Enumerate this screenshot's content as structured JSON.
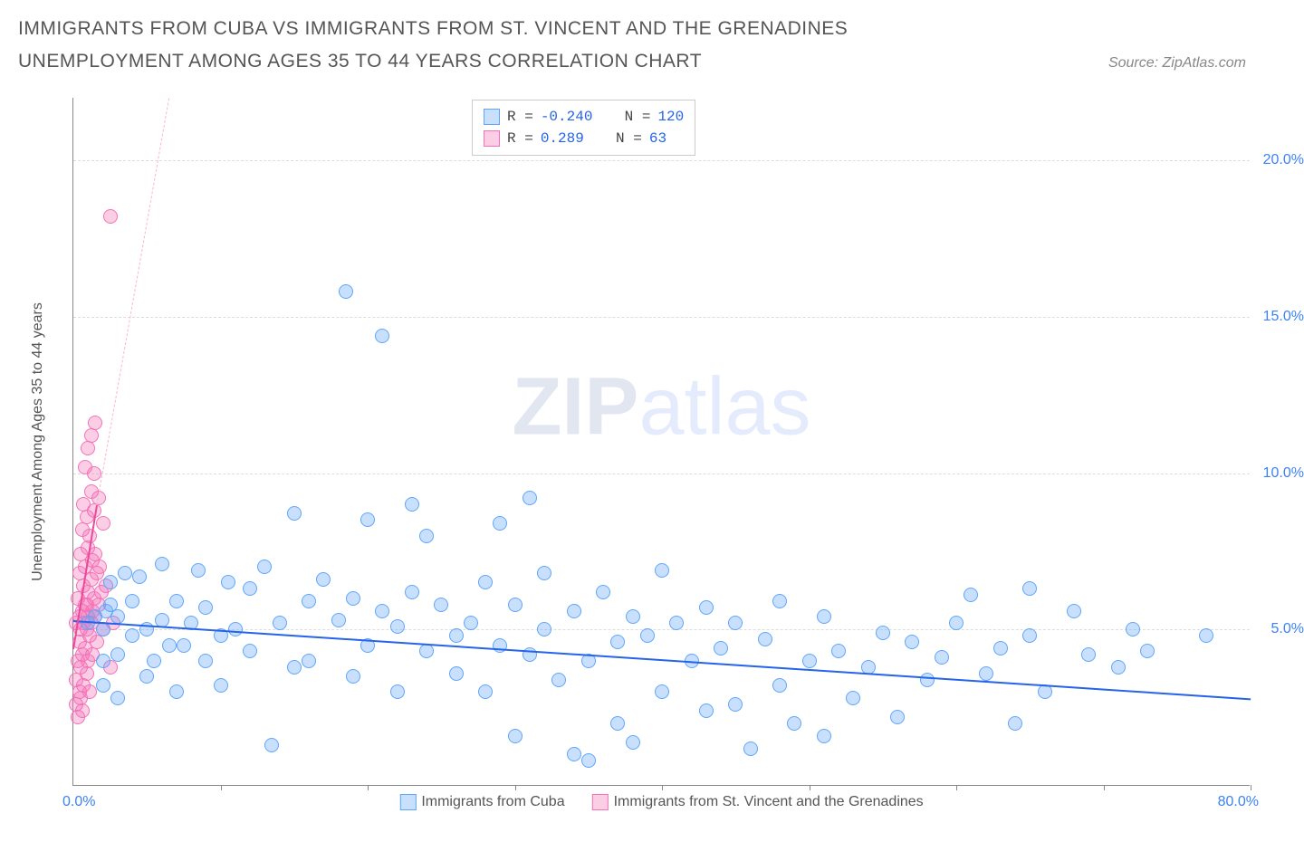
{
  "title": "IMMIGRANTS FROM CUBA VS IMMIGRANTS FROM ST. VINCENT AND THE GRENADINES UNEMPLOYMENT AMONG AGES 35 TO 44 YEARS CORRELATION CHART",
  "source": "Source: ZipAtlas.com",
  "watermark_a": "ZIP",
  "watermark_b": "atlas",
  "chart": {
    "type": "scatter",
    "xlim": [
      0,
      80
    ],
    "ylim": [
      0,
      22
    ],
    "x_ticks": [
      10,
      20,
      30,
      40,
      50,
      60,
      70,
      80
    ],
    "x_label_min": "0.0%",
    "x_label_max": "80.0%",
    "y_gridlines": [
      5,
      10,
      15,
      20
    ],
    "y_labels": [
      "5.0%",
      "10.0%",
      "15.0%",
      "20.0%"
    ],
    "ylabel": "Unemployment Among Ages 35 to 44 years",
    "grid_color": "#dddddd",
    "axis_color": "#888888",
    "background_color": "#ffffff"
  },
  "series": [
    {
      "name": "Immigrants from Cuba",
      "color_fill": "rgba(96,165,250,0.35)",
      "color_stroke": "#60a5fa",
      "marker_radius": 8,
      "R": "-0.240",
      "N": "120",
      "trend": {
        "x1": 0,
        "y1": 5.3,
        "x2": 80,
        "y2": 2.8,
        "color": "#2563eb",
        "width": 2.5,
        "dash": "solid"
      },
      "trend_ext": null,
      "points": [
        [
          1,
          5.2
        ],
        [
          1.5,
          5.4
        ],
        [
          2,
          3.2
        ],
        [
          2,
          4.0
        ],
        [
          2,
          5.0
        ],
        [
          2.2,
          5.6
        ],
        [
          2.5,
          6.5
        ],
        [
          2.5,
          5.8
        ],
        [
          3,
          5.4
        ],
        [
          3,
          4.2
        ],
        [
          3,
          2.8
        ],
        [
          3.5,
          6.8
        ],
        [
          4,
          5.9
        ],
        [
          4,
          4.8
        ],
        [
          4.5,
          6.7
        ],
        [
          5,
          3.5
        ],
        [
          5,
          5.0
        ],
        [
          5.5,
          4.0
        ],
        [
          6,
          5.3
        ],
        [
          6,
          7.1
        ],
        [
          6.5,
          4.5
        ],
        [
          7,
          3.0
        ],
        [
          7,
          5.9
        ],
        [
          7.5,
          4.5
        ],
        [
          8,
          5.2
        ],
        [
          8.5,
          6.9
        ],
        [
          9,
          5.7
        ],
        [
          9,
          4.0
        ],
        [
          10,
          3.2
        ],
        [
          10,
          4.8
        ],
        [
          10.5,
          6.5
        ],
        [
          11,
          5.0
        ],
        [
          12,
          4.3
        ],
        [
          12,
          6.3
        ],
        [
          13,
          7.0
        ],
        [
          13.5,
          1.3
        ],
        [
          14,
          5.2
        ],
        [
          15,
          3.8
        ],
        [
          15,
          8.7
        ],
        [
          16,
          5.9
        ],
        [
          16,
          4.0
        ],
        [
          17,
          6.6
        ],
        [
          18,
          5.3
        ],
        [
          18.5,
          15.8
        ],
        [
          19,
          3.5
        ],
        [
          19,
          6.0
        ],
        [
          20,
          4.5
        ],
        [
          20,
          8.5
        ],
        [
          21,
          5.6
        ],
        [
          21,
          14.4
        ],
        [
          22,
          3.0
        ],
        [
          22,
          5.1
        ],
        [
          23,
          6.2
        ],
        [
          23,
          9.0
        ],
        [
          24,
          4.3
        ],
        [
          24,
          8.0
        ],
        [
          25,
          5.8
        ],
        [
          26,
          3.6
        ],
        [
          26,
          4.8
        ],
        [
          27,
          5.2
        ],
        [
          28,
          6.5
        ],
        [
          28,
          3.0
        ],
        [
          29,
          8.4
        ],
        [
          29,
          4.5
        ],
        [
          30,
          1.6
        ],
        [
          30,
          5.8
        ],
        [
          31,
          4.2
        ],
        [
          31,
          9.2
        ],
        [
          32,
          5.0
        ],
        [
          32,
          6.8
        ],
        [
          33,
          3.4
        ],
        [
          34,
          5.6
        ],
        [
          34,
          1.0
        ],
        [
          35,
          4.0
        ],
        [
          35,
          0.8
        ],
        [
          36,
          6.2
        ],
        [
          37,
          4.6
        ],
        [
          37,
          2.0
        ],
        [
          38,
          1.4
        ],
        [
          38,
          5.4
        ],
        [
          39,
          4.8
        ],
        [
          40,
          6.9
        ],
        [
          40,
          3.0
        ],
        [
          41,
          5.2
        ],
        [
          42,
          4.0
        ],
        [
          43,
          2.4
        ],
        [
          43,
          5.7
        ],
        [
          44,
          4.4
        ],
        [
          45,
          5.2
        ],
        [
          45,
          2.6
        ],
        [
          46,
          1.2
        ],
        [
          47,
          4.7
        ],
        [
          48,
          5.9
        ],
        [
          48,
          3.2
        ],
        [
          49,
          2.0
        ],
        [
          50,
          4.0
        ],
        [
          51,
          5.4
        ],
        [
          51,
          1.6
        ],
        [
          52,
          4.3
        ],
        [
          53,
          2.8
        ],
        [
          54,
          3.8
        ],
        [
          55,
          4.9
        ],
        [
          56,
          2.2
        ],
        [
          57,
          4.6
        ],
        [
          58,
          3.4
        ],
        [
          59,
          4.1
        ],
        [
          60,
          5.2
        ],
        [
          61,
          6.1
        ],
        [
          62,
          3.6
        ],
        [
          63,
          4.4
        ],
        [
          64,
          2.0
        ],
        [
          65,
          4.8
        ],
        [
          65,
          6.3
        ],
        [
          66,
          3.0
        ],
        [
          68,
          5.6
        ],
        [
          69,
          4.2
        ],
        [
          71,
          3.8
        ],
        [
          72,
          5.0
        ],
        [
          73,
          4.3
        ],
        [
          77,
          4.8
        ]
      ]
    },
    {
      "name": "Immigrants from St. Vincent and the Grenadines",
      "color_fill": "rgba(244,114,182,0.35)",
      "color_stroke": "#f472b6",
      "marker_radius": 8,
      "R": "0.289",
      "N": "63",
      "trend": {
        "x1": 0,
        "y1": 4.4,
        "x2": 1.6,
        "y2": 9.0,
        "color": "#ec4899",
        "width": 2.5,
        "dash": "solid"
      },
      "trend_ext": {
        "x1": 1.6,
        "y1": 9.0,
        "x2": 6.5,
        "y2": 22,
        "color": "#fbb6ce",
        "width": 1,
        "dash": "dashed"
      },
      "points": [
        [
          0.2,
          2.6
        ],
        [
          0.2,
          5.2
        ],
        [
          0.2,
          3.4
        ],
        [
          0.3,
          4.0
        ],
        [
          0.3,
          6.0
        ],
        [
          0.3,
          2.2
        ],
        [
          0.4,
          5.4
        ],
        [
          0.4,
          3.0
        ],
        [
          0.4,
          6.8
        ],
        [
          0.4,
          4.6
        ],
        [
          0.5,
          5.0
        ],
        [
          0.5,
          2.8
        ],
        [
          0.5,
          7.4
        ],
        [
          0.5,
          3.8
        ],
        [
          0.6,
          5.6
        ],
        [
          0.6,
          4.2
        ],
        [
          0.6,
          8.2
        ],
        [
          0.6,
          2.4
        ],
        [
          0.7,
          5.2
        ],
        [
          0.7,
          6.4
        ],
        [
          0.7,
          3.2
        ],
        [
          0.7,
          9.0
        ],
        [
          0.8,
          5.8
        ],
        [
          0.8,
          4.4
        ],
        [
          0.8,
          7.0
        ],
        [
          0.8,
          10.2
        ],
        [
          0.9,
          5.0
        ],
        [
          0.9,
          3.6
        ],
        [
          0.9,
          8.6
        ],
        [
          0.9,
          5.8
        ],
        [
          1.0,
          6.2
        ],
        [
          1.0,
          4.0
        ],
        [
          1.0,
          10.8
        ],
        [
          1.0,
          5.4
        ],
        [
          1.0,
          7.6
        ],
        [
          1.1,
          4.8
        ],
        [
          1.1,
          8.0
        ],
        [
          1.1,
          3.0
        ],
        [
          1.2,
          6.6
        ],
        [
          1.2,
          5.2
        ],
        [
          1.2,
          9.4
        ],
        [
          1.2,
          11.2
        ],
        [
          1.3,
          5.6
        ],
        [
          1.3,
          7.2
        ],
        [
          1.3,
          4.2
        ],
        [
          1.4,
          6.0
        ],
        [
          1.4,
          8.8
        ],
        [
          1.4,
          10.0
        ],
        [
          1.5,
          5.4
        ],
        [
          1.5,
          7.4
        ],
        [
          1.5,
          11.6
        ],
        [
          1.6,
          6.8
        ],
        [
          1.6,
          4.6
        ],
        [
          1.7,
          9.2
        ],
        [
          1.7,
          5.8
        ],
        [
          1.8,
          7.0
        ],
        [
          1.9,
          6.2
        ],
        [
          2.0,
          5.0
        ],
        [
          2.0,
          8.4
        ],
        [
          2.2,
          6.4
        ],
        [
          2.5,
          3.8
        ],
        [
          2.7,
          5.2
        ],
        [
          2.5,
          18.2
        ]
      ]
    }
  ],
  "legend_box": {
    "rows": [
      {
        "swatch_fill": "rgba(96,165,250,0.35)",
        "swatch_stroke": "#60a5fa",
        "r_label": "R =",
        "r_val": "-0.240",
        "n_label": "N =",
        "n_val": "120"
      },
      {
        "swatch_fill": "rgba(244,114,182,0.35)",
        "swatch_stroke": "#f472b6",
        "r_label": "R =",
        "r_val": " 0.289",
        "n_label": "N =",
        "n_val": " 63"
      }
    ]
  },
  "bottom_legend": [
    {
      "swatch_fill": "rgba(96,165,250,0.35)",
      "swatch_stroke": "#60a5fa",
      "label": "Immigrants from Cuba"
    },
    {
      "swatch_fill": "rgba(244,114,182,0.35)",
      "swatch_stroke": "#f472b6",
      "label": "Immigrants from St. Vincent and the Grenadines"
    }
  ]
}
